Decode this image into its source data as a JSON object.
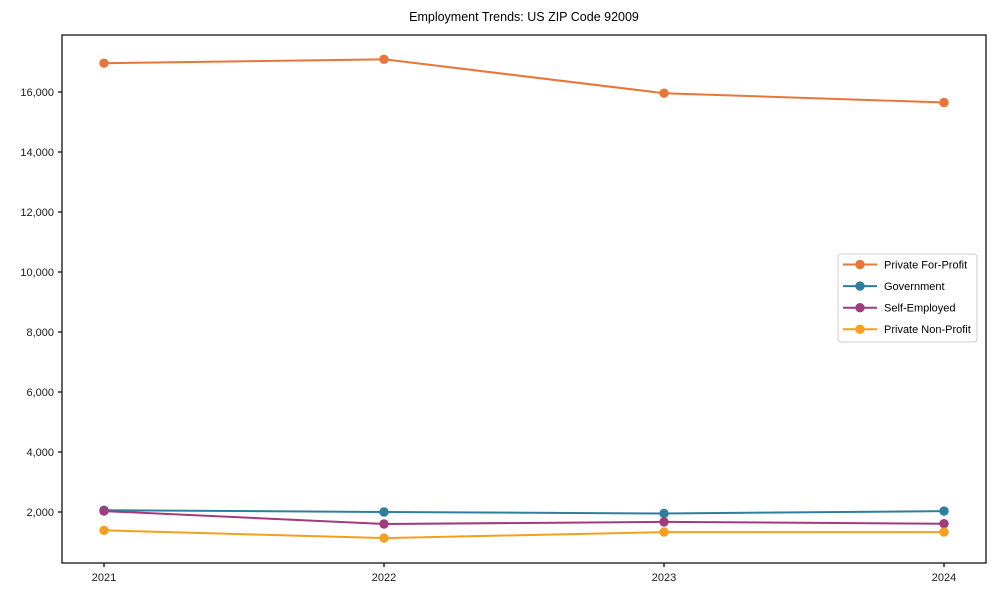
{
  "title": "Employment Trends: US ZIP Code 92009",
  "chart_data": {
    "type": "line",
    "title": "Employment Trends: US ZIP Code 92009",
    "xlabel": "",
    "ylabel": "",
    "x": [
      2021,
      2022,
      2023,
      2024
    ],
    "x_labels": [
      "2021",
      "2022",
      "2023",
      "2024"
    ],
    "series": [
      {
        "name": "Private For-Profit",
        "color": "#e8763b",
        "values": [
          16960,
          17090,
          15960,
          15650
        ]
      },
      {
        "name": "Government",
        "color": "#2e7f9e",
        "values": [
          2060,
          2000,
          1950,
          2030
        ]
      },
      {
        "name": "Self-Employed",
        "color": "#a03c7c",
        "values": [
          2030,
          1600,
          1670,
          1610
        ]
      },
      {
        "name": "Private Non-Profit",
        "color": "#f3a01f",
        "values": [
          1390,
          1130,
          1330,
          1330
        ]
      }
    ],
    "xlim": [
      2020.85,
      2024.15
    ],
    "ylim": [
      300,
      17900
    ],
    "yticks": [
      2000,
      4000,
      6000,
      8000,
      10000,
      12000,
      14000,
      16000
    ],
    "ytick_labels": [
      "2,000",
      "4,000",
      "6,000",
      "8,000",
      "10,000",
      "12,000",
      "14,000",
      "16,000"
    ],
    "grid": false,
    "legend_position": "center-right",
    "marker": "circle",
    "axis_color": "#000000",
    "tick_label_color": "#1a1a1a",
    "legend_border_color": "#cccccc",
    "legend_background": "#ffffff"
  }
}
